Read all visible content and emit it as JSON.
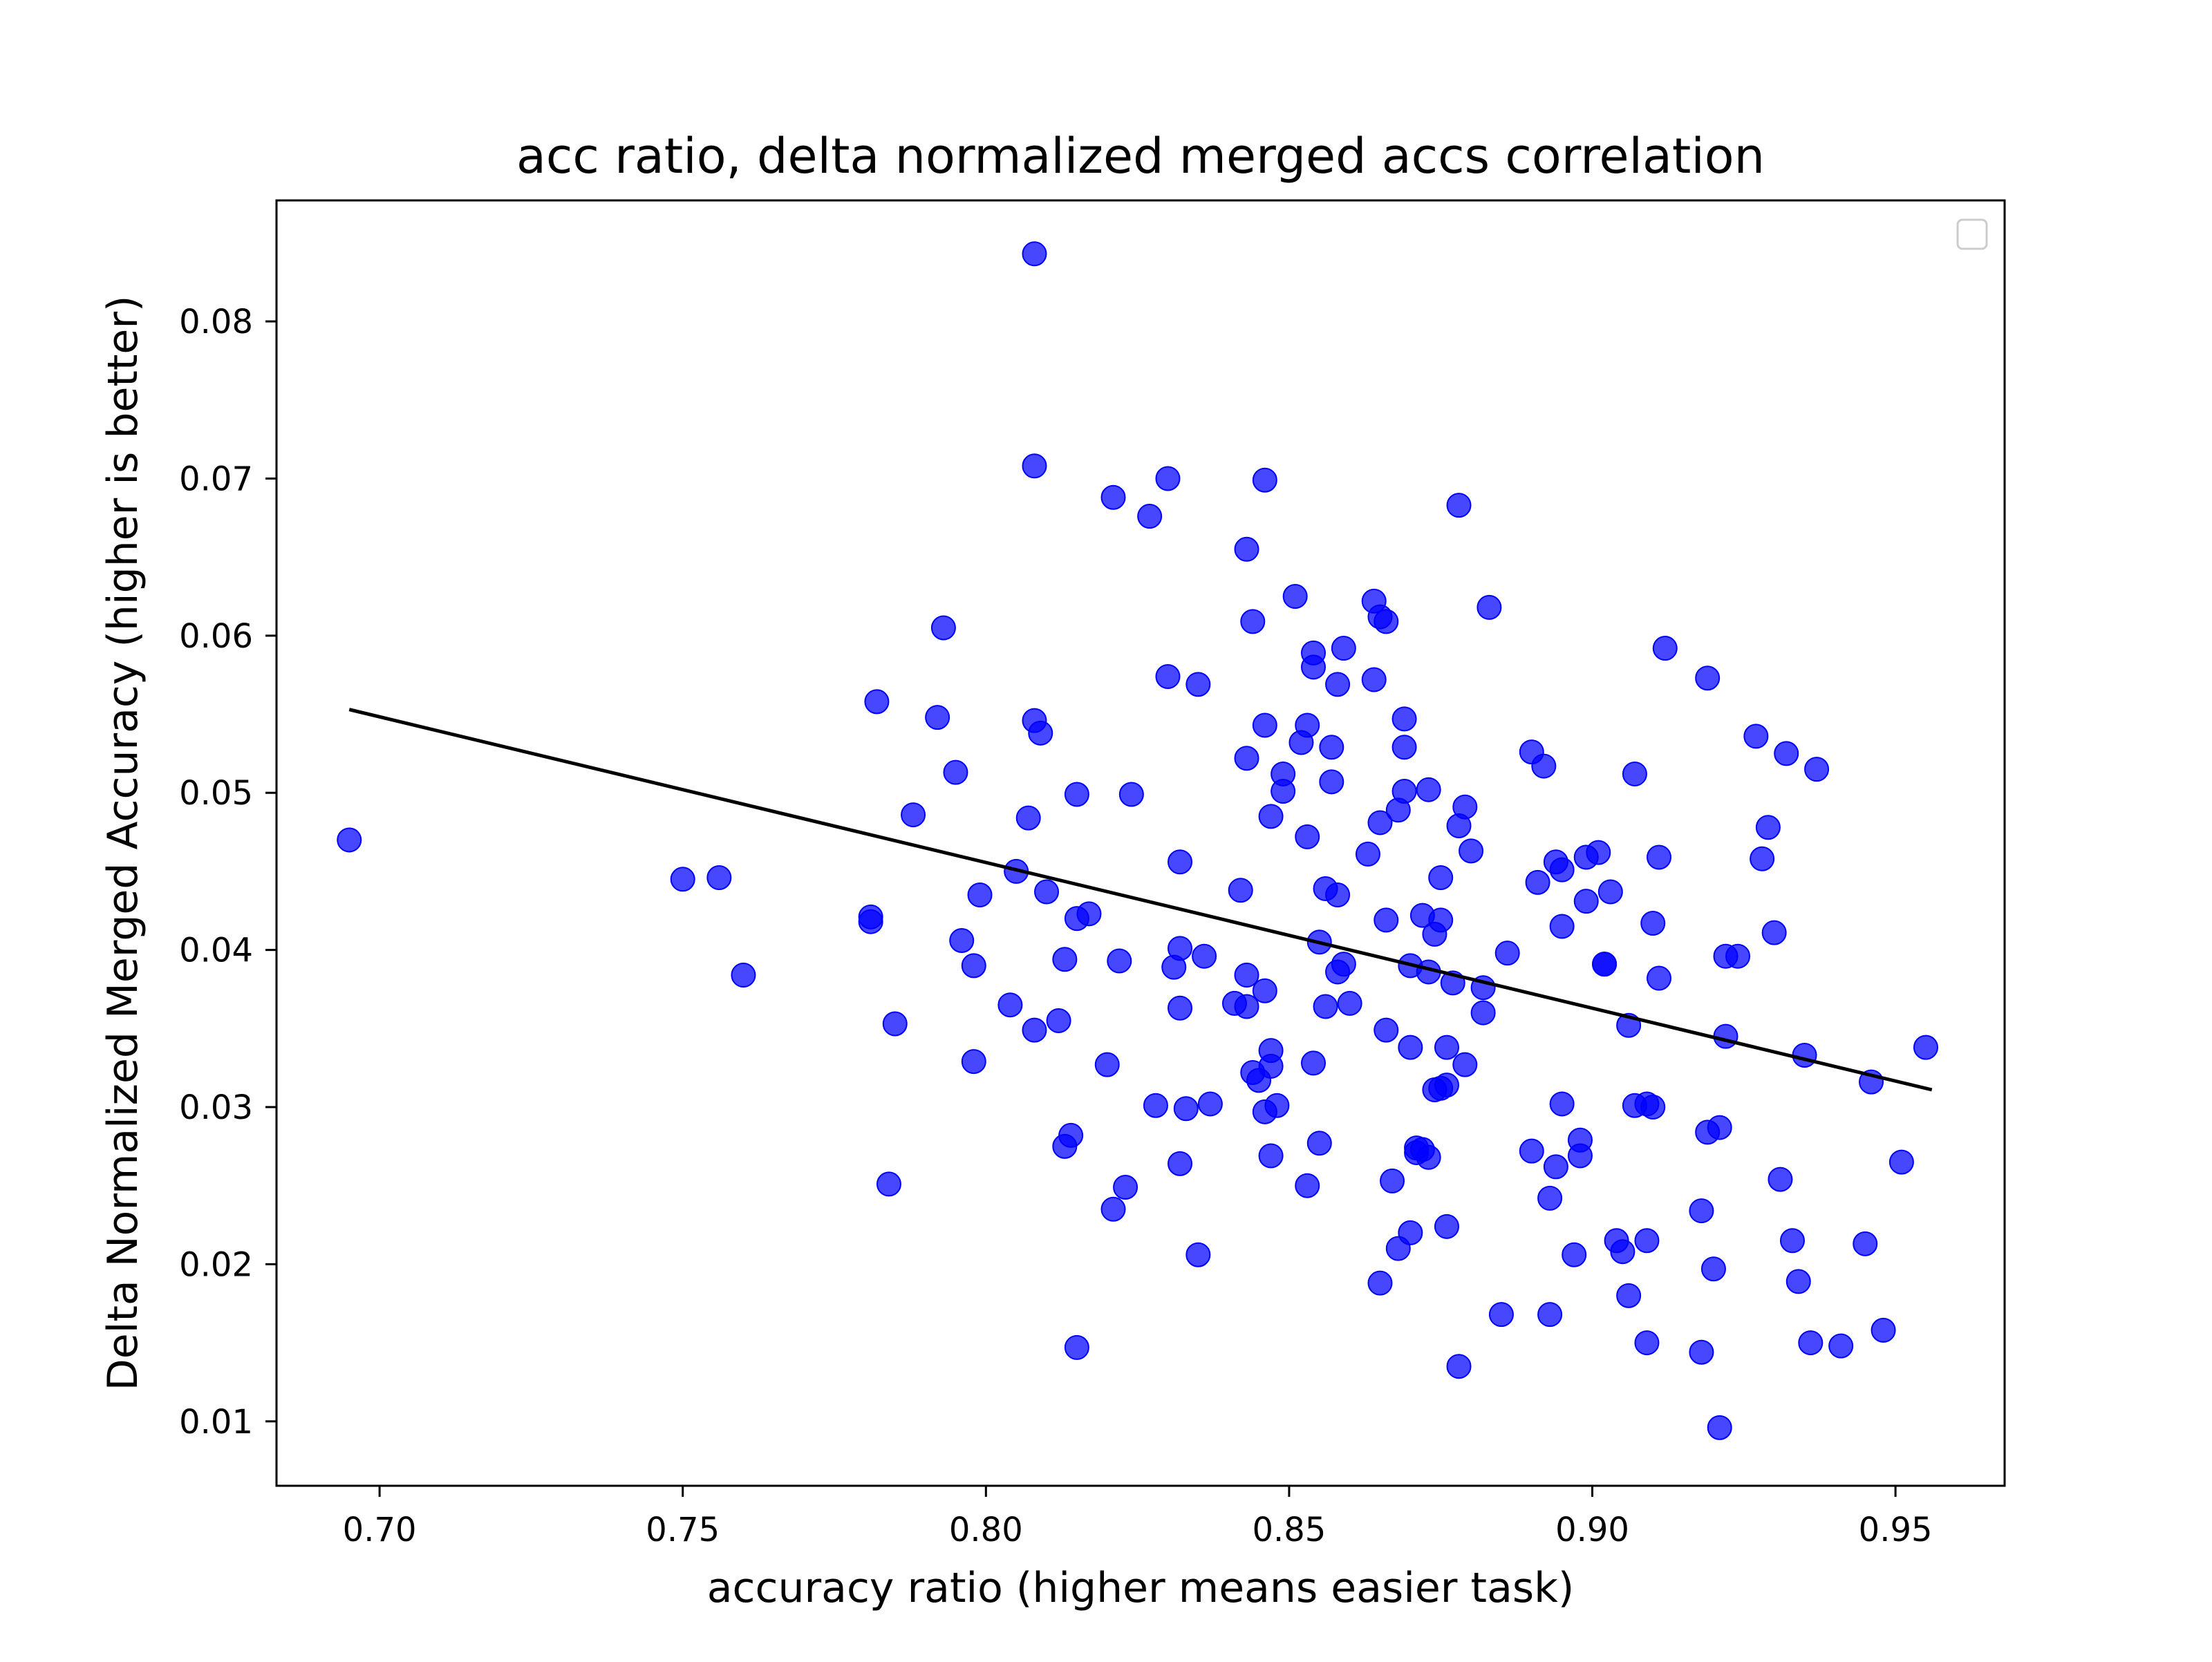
{
  "chart_data": {
    "type": "scatter",
    "title": "acc ratio, delta normalized merged accs correlation",
    "xlabel": "accuracy ratio (higher means easier task)",
    "ylabel": "Delta Normalized Merged Accuracy (higher is better)",
    "xlim": [
      0.683,
      0.968
    ],
    "ylim": [
      0.0059,
      0.0877
    ],
    "x_ticks": [
      "0.70",
      "0.75",
      "0.80",
      "0.85",
      "0.90",
      "0.95"
    ],
    "y_ticks": [
      "0.01",
      "0.02",
      "0.03",
      "0.04",
      "0.05",
      "0.06",
      "0.07",
      "0.08"
    ],
    "grid": false,
    "legend": {
      "placement": "top-right",
      "entries": []
    },
    "colors": {
      "points": "#0000ff",
      "trend_line": "#000000"
    },
    "series": [
      {
        "points": [
          [
            0.695,
            0.047
          ],
          [
            0.75,
            0.0445
          ],
          [
            0.756,
            0.0446
          ],
          [
            0.76,
            0.0384
          ],
          [
            0.781,
            0.0418
          ],
          [
            0.781,
            0.0421
          ],
          [
            0.782,
            0.0558
          ],
          [
            0.784,
            0.0251
          ],
          [
            0.785,
            0.0353
          ],
          [
            0.788,
            0.0486
          ],
          [
            0.792,
            0.0548
          ],
          [
            0.793,
            0.0605
          ],
          [
            0.795,
            0.0513
          ],
          [
            0.796,
            0.0406
          ],
          [
            0.798,
            0.039
          ],
          [
            0.798,
            0.0329
          ],
          [
            0.799,
            0.0435
          ],
          [
            0.804,
            0.0365
          ],
          [
            0.805,
            0.045
          ],
          [
            0.807,
            0.0484
          ],
          [
            0.808,
            0.0349
          ],
          [
            0.808,
            0.0843
          ],
          [
            0.808,
            0.0708
          ],
          [
            0.808,
            0.0546
          ],
          [
            0.809,
            0.0538
          ],
          [
            0.81,
            0.0437
          ],
          [
            0.812,
            0.0355
          ],
          [
            0.813,
            0.0394
          ],
          [
            0.813,
            0.0275
          ],
          [
            0.814,
            0.0282
          ],
          [
            0.815,
            0.042
          ],
          [
            0.815,
            0.0499
          ],
          [
            0.815,
            0.0147
          ],
          [
            0.817,
            0.0423
          ],
          [
            0.82,
            0.0327
          ],
          [
            0.821,
            0.0688
          ],
          [
            0.821,
            0.0235
          ],
          [
            0.822,
            0.0393
          ],
          [
            0.823,
            0.0249
          ],
          [
            0.824,
            0.0499
          ],
          [
            0.827,
            0.0676
          ],
          [
            0.828,
            0.0301
          ],
          [
            0.83,
            0.07
          ],
          [
            0.83,
            0.0574
          ],
          [
            0.831,
            0.0389
          ],
          [
            0.832,
            0.0264
          ],
          [
            0.832,
            0.0363
          ],
          [
            0.832,
            0.0456
          ],
          [
            0.832,
            0.0401
          ],
          [
            0.833,
            0.0299
          ],
          [
            0.835,
            0.0569
          ],
          [
            0.835,
            0.0206
          ],
          [
            0.836,
            0.0396
          ],
          [
            0.837,
            0.0302
          ],
          [
            0.841,
            0.0366
          ],
          [
            0.842,
            0.0438
          ],
          [
            0.843,
            0.0364
          ],
          [
            0.843,
            0.0655
          ],
          [
            0.843,
            0.0522
          ],
          [
            0.843,
            0.0384
          ],
          [
            0.844,
            0.0609
          ],
          [
            0.844,
            0.0322
          ],
          [
            0.845,
            0.0317
          ],
          [
            0.846,
            0.0699
          ],
          [
            0.846,
            0.0543
          ],
          [
            0.846,
            0.0297
          ],
          [
            0.846,
            0.0374
          ],
          [
            0.847,
            0.0485
          ],
          [
            0.847,
            0.0326
          ],
          [
            0.847,
            0.0269
          ],
          [
            0.847,
            0.0336
          ],
          [
            0.848,
            0.0301
          ],
          [
            0.849,
            0.0512
          ],
          [
            0.849,
            0.0501
          ],
          [
            0.851,
            0.0625
          ],
          [
            0.852,
            0.0532
          ],
          [
            0.853,
            0.025
          ],
          [
            0.853,
            0.0472
          ],
          [
            0.853,
            0.0543
          ],
          [
            0.854,
            0.058
          ],
          [
            0.854,
            0.0589
          ],
          [
            0.854,
            0.0328
          ],
          [
            0.855,
            0.0405
          ],
          [
            0.855,
            0.0277
          ],
          [
            0.856,
            0.0364
          ],
          [
            0.856,
            0.0439
          ],
          [
            0.857,
            0.0529
          ],
          [
            0.857,
            0.0507
          ],
          [
            0.858,
            0.0569
          ],
          [
            0.858,
            0.0435
          ],
          [
            0.858,
            0.0386
          ],
          [
            0.859,
            0.0592
          ],
          [
            0.859,
            0.0391
          ],
          [
            0.86,
            0.0366
          ],
          [
            0.863,
            0.0461
          ],
          [
            0.864,
            0.0622
          ],
          [
            0.864,
            0.0572
          ],
          [
            0.865,
            0.0612
          ],
          [
            0.865,
            0.0481
          ],
          [
            0.865,
            0.0188
          ],
          [
            0.866,
            0.0609
          ],
          [
            0.866,
            0.0349
          ],
          [
            0.866,
            0.0419
          ],
          [
            0.867,
            0.0253
          ],
          [
            0.868,
            0.021
          ],
          [
            0.868,
            0.0489
          ],
          [
            0.869,
            0.0547
          ],
          [
            0.869,
            0.0529
          ],
          [
            0.869,
            0.0501
          ],
          [
            0.87,
            0.039
          ],
          [
            0.87,
            0.0338
          ],
          [
            0.87,
            0.022
          ],
          [
            0.871,
            0.0274
          ],
          [
            0.871,
            0.0271
          ],
          [
            0.872,
            0.0422
          ],
          [
            0.872,
            0.0273
          ],
          [
            0.873,
            0.0386
          ],
          [
            0.873,
            0.0268
          ],
          [
            0.873,
            0.0502
          ],
          [
            0.874,
            0.0311
          ],
          [
            0.874,
            0.041
          ],
          [
            0.875,
            0.0312
          ],
          [
            0.875,
            0.0419
          ],
          [
            0.875,
            0.0446
          ],
          [
            0.876,
            0.0314
          ],
          [
            0.876,
            0.0224
          ],
          [
            0.876,
            0.0338
          ],
          [
            0.877,
            0.0379
          ],
          [
            0.878,
            0.0479
          ],
          [
            0.878,
            0.0135
          ],
          [
            0.878,
            0.0683
          ],
          [
            0.879,
            0.0491
          ],
          [
            0.879,
            0.0327
          ],
          [
            0.88,
            0.0463
          ],
          [
            0.882,
            0.0376
          ],
          [
            0.882,
            0.036
          ],
          [
            0.883,
            0.0618
          ],
          [
            0.885,
            0.0168
          ],
          [
            0.886,
            0.0398
          ],
          [
            0.89,
            0.0526
          ],
          [
            0.89,
            0.0272
          ],
          [
            0.891,
            0.0443
          ],
          [
            0.892,
            0.0517
          ],
          [
            0.893,
            0.0242
          ],
          [
            0.893,
            0.0168
          ],
          [
            0.894,
            0.0456
          ],
          [
            0.894,
            0.0262
          ],
          [
            0.895,
            0.0451
          ],
          [
            0.895,
            0.0302
          ],
          [
            0.895,
            0.0415
          ],
          [
            0.897,
            0.0206
          ],
          [
            0.898,
            0.0279
          ],
          [
            0.898,
            0.0269
          ],
          [
            0.899,
            0.0459
          ],
          [
            0.899,
            0.0431
          ],
          [
            0.901,
            0.0462
          ],
          [
            0.902,
            0.0391
          ],
          [
            0.902,
            0.0391
          ],
          [
            0.903,
            0.0437
          ],
          [
            0.904,
            0.0215
          ],
          [
            0.905,
            0.0208
          ],
          [
            0.906,
            0.018
          ],
          [
            0.906,
            0.0352
          ],
          [
            0.907,
            0.0512
          ],
          [
            0.907,
            0.0301
          ],
          [
            0.909,
            0.0302
          ],
          [
            0.909,
            0.015
          ],
          [
            0.909,
            0.0215
          ],
          [
            0.91,
            0.0417
          ],
          [
            0.91,
            0.03
          ],
          [
            0.911,
            0.0382
          ],
          [
            0.911,
            0.0459
          ],
          [
            0.912,
            0.0592
          ],
          [
            0.918,
            0.0144
          ],
          [
            0.918,
            0.0234
          ],
          [
            0.919,
            0.0573
          ],
          [
            0.919,
            0.0284
          ],
          [
            0.92,
            0.0197
          ],
          [
            0.921,
            0.0096
          ],
          [
            0.921,
            0.0287
          ],
          [
            0.922,
            0.0396
          ],
          [
            0.922,
            0.0345
          ],
          [
            0.924,
            0.0396
          ],
          [
            0.927,
            0.0536
          ],
          [
            0.928,
            0.0458
          ],
          [
            0.929,
            0.0478
          ],
          [
            0.93,
            0.0411
          ],
          [
            0.931,
            0.0254
          ],
          [
            0.932,
            0.0525
          ],
          [
            0.933,
            0.0215
          ],
          [
            0.934,
            0.0189
          ],
          [
            0.935,
            0.0333
          ],
          [
            0.936,
            0.015
          ],
          [
            0.937,
            0.0515
          ],
          [
            0.941,
            0.0148
          ],
          [
            0.945,
            0.0213
          ],
          [
            0.946,
            0.0316
          ],
          [
            0.948,
            0.0158
          ],
          [
            0.951,
            0.0265
          ],
          [
            0.955,
            0.0338
          ]
        ]
      }
    ],
    "trend_line": {
      "x": [
        0.695,
        0.956
      ],
      "y": [
        0.0553,
        0.0311
      ]
    }
  }
}
